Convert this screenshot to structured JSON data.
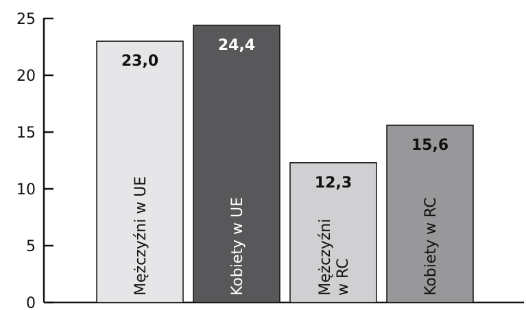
{
  "chart_data": {
    "type": "bar",
    "categories": [
      "Mężczyźni w UE",
      "Kobiety w UE",
      "Mężczyźni w RC",
      "Kobiety w RC"
    ],
    "category_lines": [
      [
        "Mężczyźni w UE"
      ],
      [
        "Kobiety w UE"
      ],
      [
        "Mężczyźni",
        "w RC"
      ],
      [
        "Kobiety w RC"
      ]
    ],
    "values": [
      23.0,
      24.4,
      12.3,
      15.6
    ],
    "value_labels": [
      "23,0",
      "24,4",
      "12,3",
      "15,6"
    ],
    "bar_colors": [
      "#e6e6e8",
      "#58585a",
      "#d0d0d2",
      "#98989b"
    ],
    "label_colors": [
      "#111111",
      "#ffffff",
      "#111111",
      "#111111"
    ],
    "value_label_colors": [
      "#111111",
      "#ffffff",
      "#111111",
      "#111111"
    ],
    "yticks": [
      "0",
      "5",
      "10",
      "15",
      "20",
      "25"
    ],
    "ylim": [
      0,
      25
    ],
    "title": "",
    "xlabel": "",
    "ylabel": "",
    "grid": false,
    "legend": "none"
  }
}
